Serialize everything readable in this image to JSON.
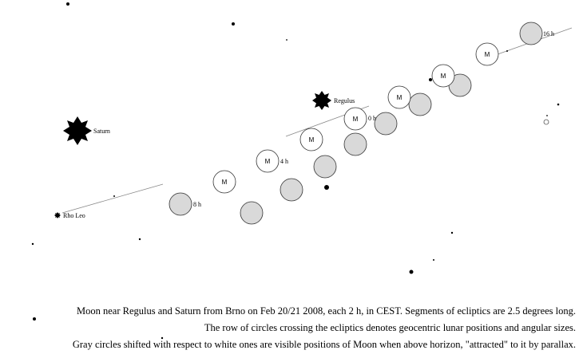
{
  "labels": {
    "saturn": "Saturn",
    "regulus": "Regulus",
    "rho_leo": "Rho Leo",
    "moon_mark": "M",
    "hours": [
      "0 h",
      "4 h",
      "8 h",
      "16 h"
    ]
  },
  "caption": {
    "line1": "Moon near Regulus and Saturn from Brno on Feb 20/21 2008, each 2 h, in CEST.  Segments of ecliptics are 2.5 degrees long.",
    "line2": "The row of circles crossing the ecliptics denotes geocentric lunar positions and angular sizes.",
    "line3": "Gray circles shifted with respect to white ones are visible positions of Moon when above horizon, \"attracted\" to it by parallax."
  },
  "colors": {
    "white_moon_fill": "#ffffff",
    "gray_moon_fill": "#d9d9d9",
    "stroke": "#333333",
    "ecliptic": "#888888"
  }
}
